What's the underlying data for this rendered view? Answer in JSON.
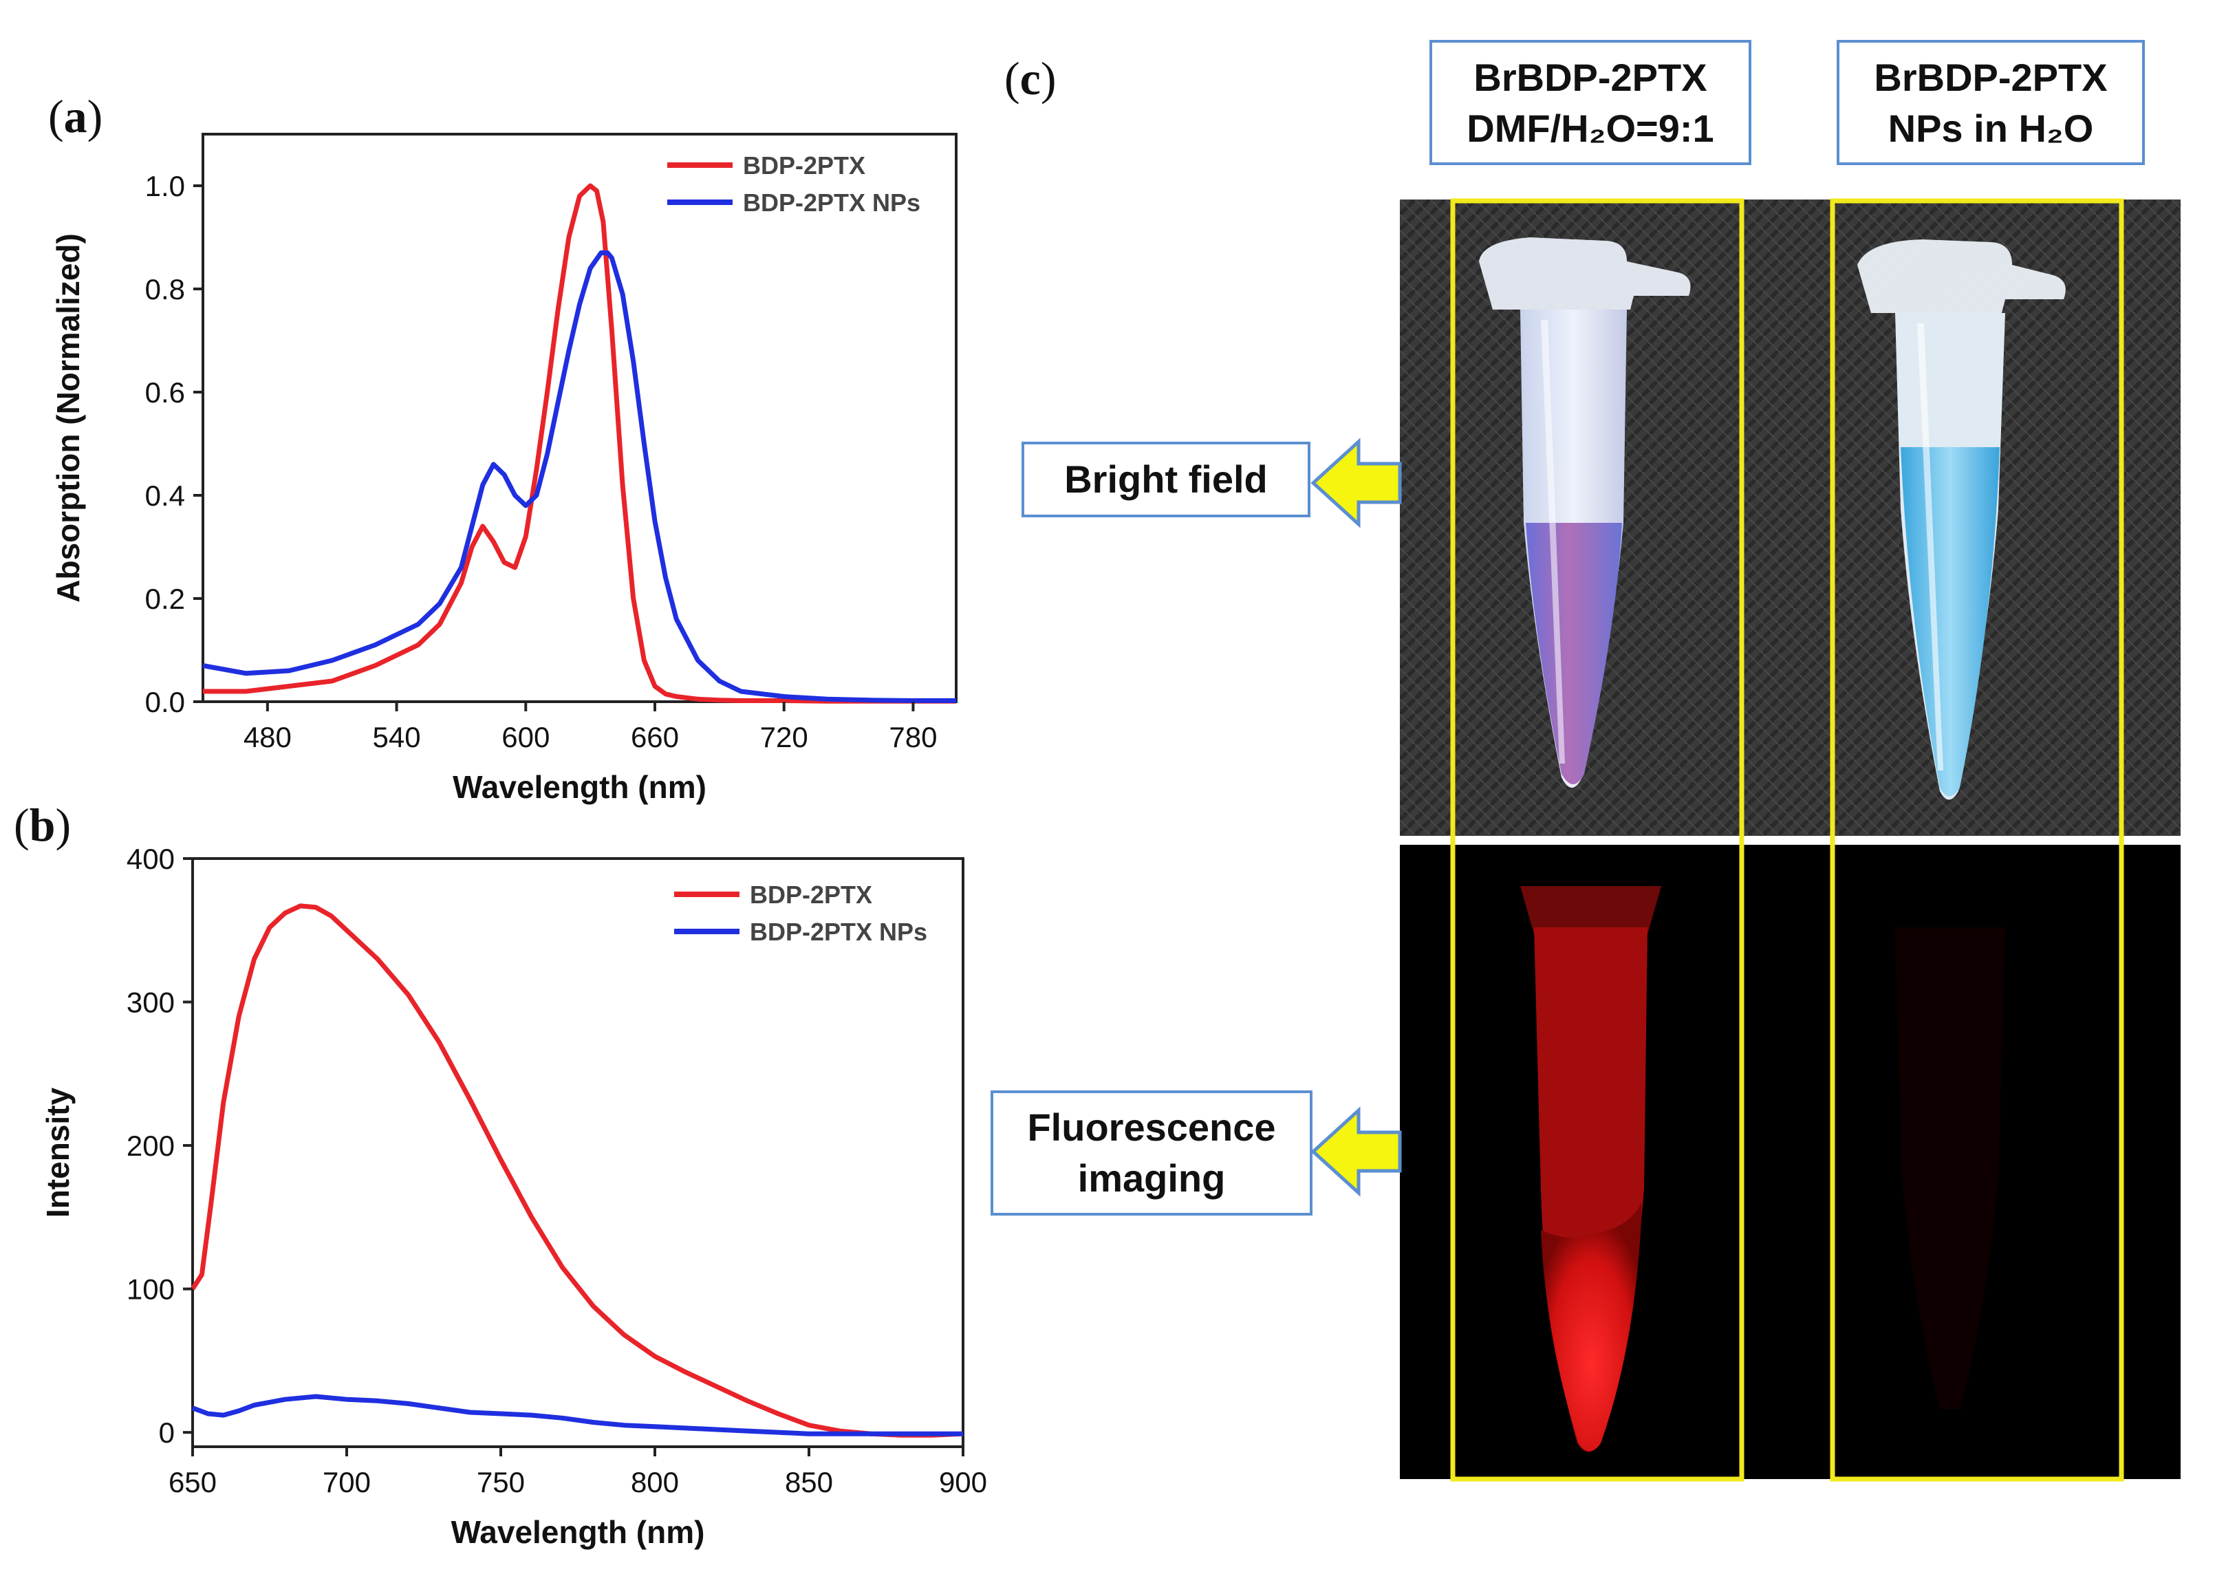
{
  "panels": {
    "a_label": "a",
    "b_label": "b",
    "c_label": "c"
  },
  "chart_data": [
    {
      "id": "a",
      "type": "line",
      "xlabel": "Wavelength (nm)",
      "ylabel": "Absorption (Normalized)",
      "xlim": [
        450,
        800
      ],
      "ylim": [
        0,
        1.1
      ],
      "xticks": [
        480,
        540,
        600,
        660,
        720,
        780
      ],
      "yticks": [
        0.0,
        0.2,
        0.4,
        0.6,
        0.8,
        1.0
      ],
      "xtick_labels": [
        "480",
        "540",
        "600",
        "660",
        "720",
        "780"
      ],
      "ytick_labels": [
        "0.0",
        "0.2",
        "0.4",
        "0.6",
        "0.8",
        "1.0"
      ],
      "legend": "top-right",
      "series": [
        {
          "name": "BDP-2PTX",
          "color": "#e8242a",
          "x": [
            450,
            470,
            490,
            510,
            530,
            550,
            560,
            570,
            575,
            580,
            585,
            590,
            595,
            600,
            605,
            610,
            615,
            620,
            625,
            630,
            633,
            636,
            640,
            645,
            650,
            655,
            660,
            665,
            670,
            680,
            690,
            700,
            720,
            740,
            760,
            780,
            800
          ],
          "y": [
            0.02,
            0.02,
            0.03,
            0.04,
            0.07,
            0.11,
            0.15,
            0.23,
            0.3,
            0.34,
            0.31,
            0.27,
            0.26,
            0.32,
            0.45,
            0.6,
            0.76,
            0.9,
            0.98,
            1.0,
            0.99,
            0.93,
            0.72,
            0.42,
            0.2,
            0.08,
            0.03,
            0.015,
            0.01,
            0.005,
            0.003,
            0.002,
            0.002,
            0.001,
            0.001,
            0.001,
            0.001
          ]
        },
        {
          "name": "BDP-2PTX NPs",
          "color": "#1f2fe0",
          "x": [
            450,
            470,
            490,
            510,
            530,
            550,
            560,
            570,
            575,
            580,
            585,
            590,
            595,
            600,
            605,
            610,
            615,
            620,
            625,
            630,
            635,
            638,
            640,
            645,
            650,
            655,
            660,
            665,
            670,
            680,
            690,
            700,
            720,
            740,
            760,
            780,
            800
          ],
          "y": [
            0.07,
            0.055,
            0.06,
            0.08,
            0.11,
            0.15,
            0.19,
            0.26,
            0.34,
            0.42,
            0.46,
            0.44,
            0.4,
            0.38,
            0.4,
            0.48,
            0.58,
            0.68,
            0.77,
            0.84,
            0.87,
            0.87,
            0.86,
            0.79,
            0.66,
            0.5,
            0.35,
            0.24,
            0.16,
            0.08,
            0.04,
            0.02,
            0.01,
            0.005,
            0.003,
            0.002,
            0.002
          ]
        }
      ]
    },
    {
      "id": "b",
      "type": "line",
      "xlabel": "Wavelength (nm)",
      "ylabel": "Intensity",
      "xlim": [
        650,
        900
      ],
      "ylim": [
        -10,
        400
      ],
      "xticks": [
        650,
        700,
        750,
        800,
        850,
        900
      ],
      "yticks": [
        0,
        100,
        200,
        300,
        400
      ],
      "xtick_labels": [
        "650",
        "700",
        "750",
        "800",
        "850",
        "900"
      ],
      "ytick_labels": [
        "0",
        "100",
        "200",
        "300",
        "400"
      ],
      "legend": "top-right",
      "series": [
        {
          "name": "BDP-2PTX",
          "color": "#e8242a",
          "x": [
            650,
            653,
            656,
            660,
            665,
            670,
            675,
            680,
            685,
            690,
            695,
            700,
            710,
            720,
            730,
            740,
            750,
            760,
            770,
            780,
            790,
            800,
            810,
            820,
            830,
            840,
            850,
            860,
            870,
            880,
            890,
            900
          ],
          "y": [
            100,
            110,
            160,
            230,
            290,
            330,
            352,
            362,
            367,
            366,
            360,
            350,
            330,
            305,
            272,
            232,
            190,
            150,
            115,
            88,
            68,
            53,
            42,
            32,
            22,
            13,
            5,
            1,
            -1,
            -2,
            -2,
            -1
          ]
        },
        {
          "name": "BDP-2PTX NPs",
          "color": "#1f2fe0",
          "x": [
            650,
            655,
            660,
            665,
            670,
            680,
            690,
            700,
            710,
            720,
            730,
            740,
            750,
            760,
            770,
            780,
            790,
            800,
            810,
            820,
            830,
            840,
            850,
            860,
            870,
            880,
            890,
            900
          ],
          "y": [
            17,
            13,
            12,
            15,
            19,
            23,
            25,
            23,
            22,
            20,
            17,
            14,
            13,
            12,
            10,
            7,
            5,
            4,
            3,
            2,
            1,
            0,
            -1,
            -1,
            -1,
            -1,
            -1,
            -1
          ]
        }
      ]
    }
  ],
  "panel_c": {
    "sample_1_line1": "BrBDP-2PTX",
    "sample_1_line2": "DMF/H₂O=9:1",
    "sample_2_line1": "BrBDP-2PTX",
    "sample_2_line2": "NPs in H₂O",
    "bright_field": "Bright field",
    "fluorescence_line1": "Fluorescence",
    "fluorescence_line2": "imaging",
    "highlight_color": "#f2ea1d",
    "callout_border": "#5b8fd0",
    "arrow_color": "#f5f510"
  }
}
